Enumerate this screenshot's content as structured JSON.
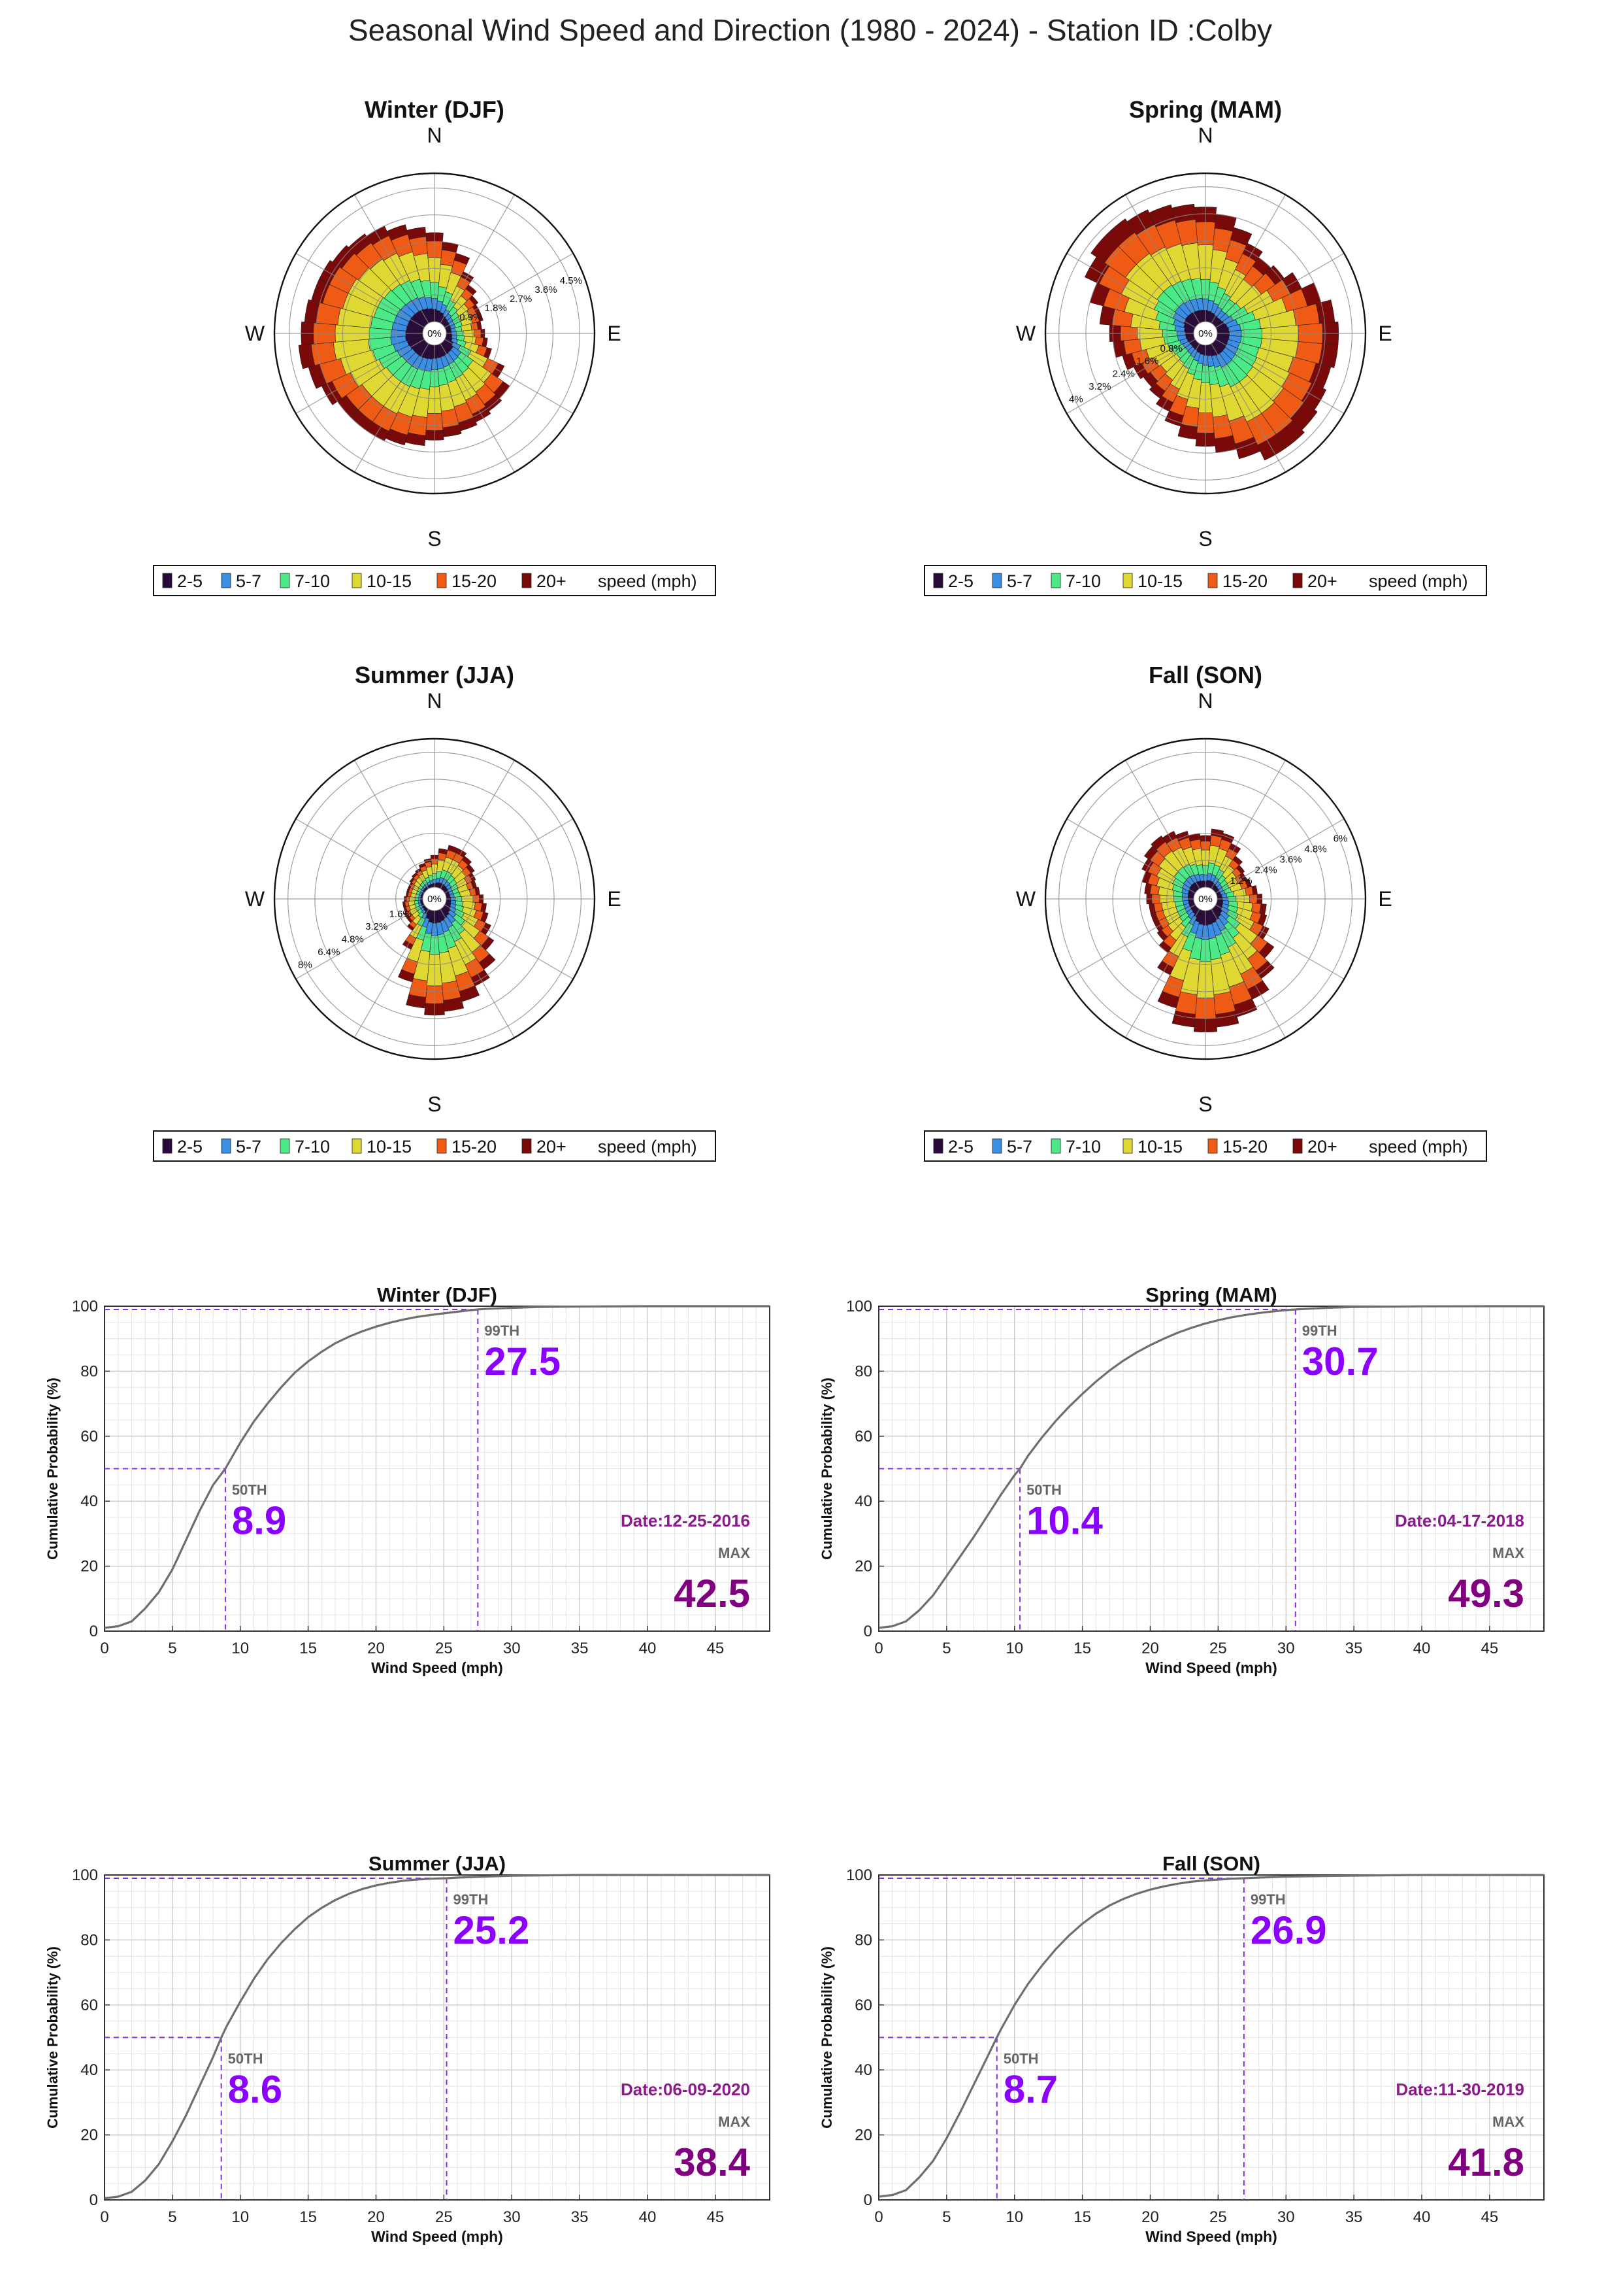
{
  "page": {
    "title": "Seasonal Wind Speed and Direction (1980 - 2024) - Station ID :Colby"
  },
  "compass": {
    "n": "N",
    "e": "E",
    "s": "S",
    "w": "W"
  },
  "legend": {
    "items": [
      {
        "label": "2-5",
        "color": "#2a0a3d"
      },
      {
        "label": "5-7",
        "color": "#3a8ee6"
      },
      {
        "label": "7-10",
        "color": "#4cea86"
      },
      {
        "label": "10-15",
        "color": "#e0d832"
      },
      {
        "label": "15-20",
        "color": "#ef5a14"
      },
      {
        "label": "20+",
        "color": "#7a0a0a"
      }
    ],
    "units": "speed (mph)"
  },
  "cdf_axes": {
    "xlabel": "Wind Speed (mph)",
    "ylabel": "Cumulative Probability (%)",
    "xticks": [
      "0",
      "5",
      "10",
      "15",
      "20",
      "25",
      "30",
      "35",
      "40",
      "45"
    ],
    "yticks": [
      "0",
      "20",
      "40",
      "60",
      "80",
      "100"
    ],
    "p50_label": "50TH",
    "p99_label": "99TH",
    "max_label": "MAX",
    "date_prefix": "Date:"
  },
  "chart_data": [
    {
      "type": "polar-bar",
      "title": "Winter (DJF)",
      "ring_labels": [
        "0%",
        "0.9%",
        "1.8%",
        "2.7%",
        "3.6%",
        "4.5%"
      ],
      "ring_step": 0.9,
      "max_radius": 5.0,
      "totals": [
        3.0,
        2.7,
        2.4,
        1.9,
        1.6,
        1.4,
        1.3,
        1.3,
        1.2,
        1.3,
        1.4,
        1.6,
        2.2,
        2.7,
        2.8,
        2.9,
        3.0,
        3.1,
        3.2,
        3.4,
        3.5,
        3.6,
        3.6,
        3.6,
        3.8,
        4.0,
        4.2,
        4.1,
        4.0,
        3.9,
        3.9,
        3.8,
        3.7,
        3.6,
        3.4,
        3.2
      ],
      "fractions": [
        0.14,
        0.12,
        0.18,
        0.28,
        0.18,
        0.1
      ]
    },
    {
      "type": "polar-bar",
      "title": "Spring (MAM)",
      "ring_labels": [
        "0%",
        "0.8%",
        "1.6%",
        "2.4%",
        "3.2%",
        "4%"
      ],
      "ring_step": 0.8,
      "max_radius": 4.4,
      "totals": [
        3.4,
        3.2,
        2.9,
        2.6,
        2.4,
        2.5,
        2.8,
        3.2,
        3.5,
        3.6,
        3.6,
        3.5,
        3.6,
        3.7,
        3.8,
        3.8,
        3.5,
        3.2,
        3.0,
        2.8,
        2.5,
        2.2,
        2.0,
        1.9,
        2.0,
        2.2,
        2.4,
        2.5,
        2.8,
        3.2,
        3.6,
        3.8,
        3.8,
        3.7,
        3.6,
        3.5
      ],
      "fractions": [
        0.1,
        0.1,
        0.17,
        0.3,
        0.2,
        0.13
      ]
    },
    {
      "type": "polar-bar",
      "title": "Summer (JJA)",
      "ring_labels": [
        "0%",
        "1.6%",
        "3.2%",
        "4.8%",
        "6.4%",
        "8%"
      ],
      "ring_step": 1.6,
      "max_radius": 8.8,
      "totals": [
        1.9,
        2.3,
        2.6,
        2.6,
        2.4,
        2.2,
        2.0,
        1.9,
        2.0,
        2.2,
        2.4,
        2.6,
        3.0,
        3.6,
        4.4,
        5.0,
        5.6,
        6.0,
        6.2,
        5.8,
        4.4,
        2.6,
        1.6,
        1.3,
        1.3,
        1.2,
        1.2,
        1.1,
        1.0,
        1.0,
        1.0,
        1.1,
        1.2,
        1.3,
        1.5,
        1.7
      ],
      "fractions": [
        0.12,
        0.12,
        0.18,
        0.3,
        0.17,
        0.11
      ]
    },
    {
      "type": "polar-bar",
      "title": "Fall (SON)",
      "ring_labels": [
        "0%",
        "1.2%",
        "2.4%",
        "3.6%",
        "4.8%",
        "6%"
      ],
      "ring_step": 1.2,
      "max_radius": 6.6,
      "totals": [
        2.3,
        2.6,
        2.5,
        2.2,
        1.8,
        1.6,
        1.5,
        1.6,
        1.8,
        2.0,
        2.2,
        2.3,
        2.6,
        3.2,
        3.8,
        4.4,
        4.9,
        5.2,
        5.4,
        5.2,
        4.5,
        3.2,
        2.4,
        2.1,
        2.0,
        2.0,
        2.0,
        2.1,
        2.2,
        2.4,
        2.6,
        2.8,
        2.9,
        2.8,
        2.6,
        2.4
      ],
      "fractions": [
        0.12,
        0.12,
        0.18,
        0.3,
        0.17,
        0.11
      ]
    },
    {
      "type": "line",
      "title": "Winter (DJF)",
      "xlim": [
        0,
        49
      ],
      "ylim": [
        0,
        100
      ],
      "x": [
        0,
        1,
        2,
        3,
        4,
        5,
        6,
        7,
        8,
        8.9,
        10,
        11,
        12,
        13,
        14,
        15,
        16,
        17,
        18,
        19,
        20,
        21,
        22,
        23,
        24,
        25,
        26,
        27,
        27.5,
        28,
        30,
        32,
        35,
        40
      ],
      "y": [
        1,
        1.5,
        3,
        7,
        12,
        19,
        28,
        37,
        45,
        50,
        58,
        64.5,
        70,
        75,
        79.5,
        83,
        86,
        88.6,
        90.6,
        92.3,
        93.7,
        94.9,
        95.9,
        96.7,
        97.3,
        97.8,
        98.3,
        98.8,
        99,
        99.15,
        99.5,
        99.75,
        99.9,
        100
      ],
      "p50": 8.9,
      "p99": 27.5,
      "max": "42.5",
      "date": "12-25-2016"
    },
    {
      "type": "line",
      "title": "Spring (MAM)",
      "xlim": [
        0,
        49
      ],
      "ylim": [
        0,
        100
      ],
      "x": [
        0,
        1,
        2,
        3,
        4,
        5,
        6,
        7,
        8,
        9,
        10,
        10.4,
        11,
        12,
        13,
        14,
        15,
        16,
        17,
        18,
        19,
        20,
        21,
        22,
        23,
        24,
        25,
        26,
        27,
        28,
        29,
        30,
        30.7,
        31,
        33,
        35,
        40,
        45
      ],
      "y": [
        1,
        1.5,
        3,
        6.5,
        11,
        17,
        23,
        29,
        35.5,
        42,
        48,
        50,
        54,
        59.5,
        64.5,
        69,
        73,
        76.8,
        80.2,
        83.2,
        85.8,
        88,
        90,
        91.8,
        93.3,
        94.6,
        95.7,
        96.6,
        97.3,
        97.9,
        98.4,
        98.8,
        99,
        99.1,
        99.5,
        99.75,
        99.95,
        100
      ],
      "p50": 10.4,
      "p99": 30.7,
      "max": "49.3",
      "date": "04-17-2018"
    },
    {
      "type": "line",
      "title": "Summer (JJA)",
      "xlim": [
        0,
        49
      ],
      "ylim": [
        0,
        100
      ],
      "x": [
        0,
        1,
        2,
        3,
        4,
        5,
        6,
        7,
        8,
        8.6,
        9,
        10,
        11,
        12,
        13,
        14,
        15,
        16,
        17,
        18,
        19,
        20,
        21,
        22,
        23,
        24,
        25.2,
        26,
        28,
        30,
        35
      ],
      "y": [
        0.5,
        1,
        2.5,
        6,
        11,
        18,
        26,
        35,
        44,
        50,
        53.5,
        61,
        68,
        74,
        79,
        83.3,
        87,
        89.9,
        92.3,
        94.2,
        95.7,
        96.8,
        97.6,
        98.2,
        98.6,
        98.85,
        99,
        99.2,
        99.5,
        99.75,
        100
      ],
      "p50": 8.6,
      "p99": 25.2,
      "max": "38.4",
      "date": "06-09-2020"
    },
    {
      "type": "line",
      "title": "Fall (SON)",
      "xlim": [
        0,
        49
      ],
      "ylim": [
        0,
        100
      ],
      "x": [
        0,
        1,
        2,
        3,
        4,
        5,
        6,
        7,
        8,
        8.7,
        9,
        10,
        11,
        12,
        13,
        14,
        15,
        16,
        17,
        18,
        19,
        20,
        21,
        22,
        23,
        24,
        25,
        26,
        26.9,
        28,
        30,
        35,
        40
      ],
      "y": [
        1,
        1.5,
        3,
        7,
        12,
        19,
        27,
        35.5,
        44,
        50,
        52.5,
        60,
        66.5,
        72,
        77,
        81.3,
        85,
        88.1,
        90.6,
        92.6,
        94.2,
        95.5,
        96.5,
        97.3,
        97.9,
        98.3,
        98.6,
        98.85,
        99,
        99.2,
        99.5,
        99.8,
        100
      ],
      "p50": 8.7,
      "p99": 26.9,
      "max": "41.8",
      "date": "11-30-2019"
    }
  ]
}
